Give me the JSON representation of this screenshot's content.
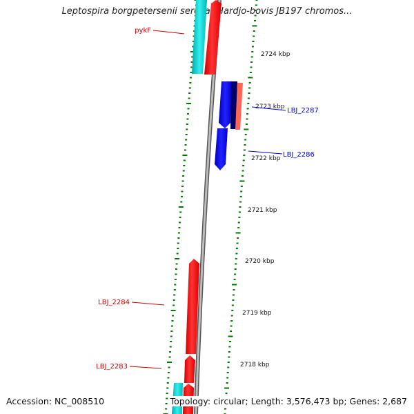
{
  "map": {
    "title": "Leptospira borgpetersenii serovar Hardjo-bovis JB197 chromos...",
    "accession_text": "Accession: NC_008510",
    "summary_text": "Topology: circular; Length: 3,576,473 bp; Genes: 2,687"
  },
  "scale_labels": [
    "2724 kbp",
    "2723 kbp",
    "2722 kbp",
    "2721 kbp",
    "2720 kbp",
    "2719 kbp",
    "2718 kbp"
  ],
  "gene_labels": [
    {
      "label": "pykF",
      "color": "#cc0000"
    },
    {
      "label": "LBJ_2287",
      "color": "#0000cc"
    },
    {
      "label": "LBJ_2286",
      "color": "#0000cc"
    },
    {
      "label": "LBJ_2284",
      "color": "#cc0000"
    },
    {
      "label": "LBJ_2283",
      "color": "#cc0000"
    }
  ],
  "colors": {
    "forward_cds": "#ff0000",
    "reverse_cds": "#0000ee",
    "rna": "#00cccc",
    "dark_feature": "#000066",
    "salmon_feature": "#ff6655",
    "backbone": "#8a8a8a",
    "tick_green": "#007700"
  }
}
